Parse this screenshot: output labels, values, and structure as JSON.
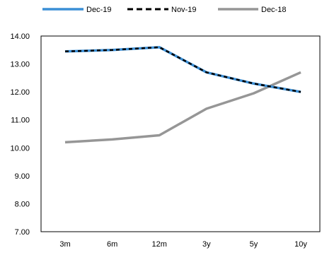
{
  "chart_data": {
    "type": "line",
    "categories": [
      "3m",
      "6m",
      "12m",
      "3y",
      "5y",
      "10y"
    ],
    "series": [
      {
        "name": "Dec-19",
        "values": [
          13.45,
          13.5,
          13.6,
          12.7,
          12.3,
          12.0
        ],
        "color": "#3b8fd6",
        "style": "solid"
      },
      {
        "name": "Nov-19",
        "values": [
          13.45,
          13.5,
          13.6,
          12.7,
          12.3,
          12.0
        ],
        "color": "#000000",
        "style": "dashed"
      },
      {
        "name": "Dec-18",
        "values": [
          10.2,
          10.3,
          10.45,
          11.4,
          11.95,
          12.7
        ],
        "color": "#969696",
        "style": "solid"
      }
    ],
    "y_ticks": [
      "7.00",
      "8.00",
      "9.00",
      "10.00",
      "11.00",
      "12.00",
      "13.00",
      "14.00"
    ],
    "ylim": [
      7,
      14
    ],
    "grid": false,
    "legend_position": "top-center",
    "title": "",
    "xlabel": "",
    "ylabel": ""
  }
}
